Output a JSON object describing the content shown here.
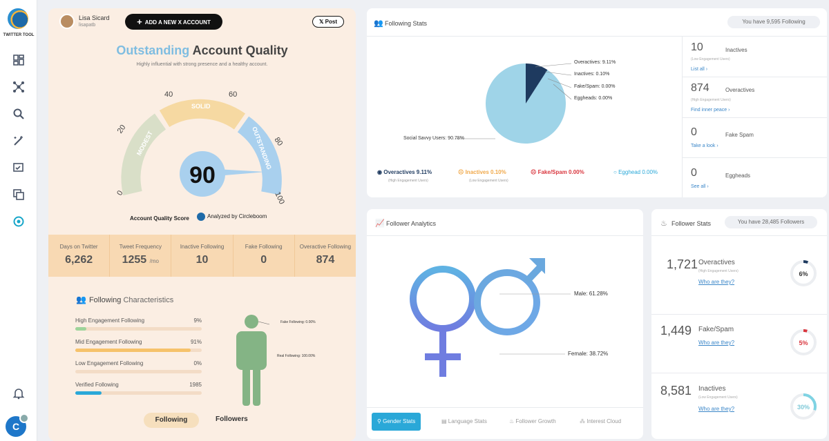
{
  "sidebar": {
    "app_name": "TWITTER TOOL",
    "items": [
      {
        "icon": "dashboard-icon"
      },
      {
        "icon": "network-icon"
      },
      {
        "icon": "search-icon"
      },
      {
        "icon": "magic-icon"
      },
      {
        "icon": "schedule-icon"
      },
      {
        "icon": "copy-icon"
      },
      {
        "icon": "sync-icon"
      }
    ],
    "avatar_letter": "C"
  },
  "profile": {
    "name": "Lisa Sicard",
    "handle": "lisapatb",
    "add_account_label": "ADD A NEW X ACCOUNT",
    "post_label": "Post"
  },
  "quality": {
    "title_highlight": "Outstanding",
    "title_rest": "Account Quality",
    "subtitle": "Highly influential with strong presence and a healthy account.",
    "score": 90,
    "gauge_ticks": [
      "0",
      "20",
      "40",
      "60",
      "80",
      "100"
    ],
    "zones": [
      "MODEST",
      "SOLID",
      "OUTSTANDING"
    ],
    "score_label": "Account Quality Score",
    "analyzed_by": "Analyzed by Circleboom"
  },
  "metrics": [
    {
      "label": "Days on Twitter",
      "value": "6,262",
      "unit": ""
    },
    {
      "label": "Tweet Frequency",
      "value": "1255",
      "unit": "/mo"
    },
    {
      "label": "Inactive Following",
      "value": "10",
      "unit": ""
    },
    {
      "label": "Fake Following",
      "value": "0",
      "unit": ""
    },
    {
      "label": "Overactive Following",
      "value": "874",
      "unit": ""
    }
  ],
  "characteristics": {
    "title_a": "Following",
    "title_b": "Characteristics",
    "bars": [
      {
        "label": "High Engagement Following",
        "value": "9%",
        "pct": 0.09,
        "color": "#9ed49a"
      },
      {
        "label": "Mid Engagement Following",
        "value": "91%",
        "pct": 0.91,
        "color": "#f6c26b"
      },
      {
        "label": "Low Engagement Following",
        "value": "0%",
        "pct": 0.0,
        "color": "#e57373"
      },
      {
        "label": "Verified Following",
        "value": "1985",
        "pct": 0.21,
        "color": "#2aa8d8"
      }
    ],
    "fake_label": "Fake Following: 0.00%",
    "real_label": "Real Following: 100.00%",
    "toggle_following": "Following",
    "toggle_followers": "Followers"
  },
  "following_stats": {
    "title": "Following Stats",
    "pill": "You have 9,595 Following",
    "pie_labels": {
      "overactives": "Overactives: 9.11%",
      "inactives": "Inactives: 0.10%",
      "fake": "Fake/Spam: 0.00%",
      "eggheads": "Eggheads: 0.00%",
      "social": "Social Savvy Users: 90.78%"
    },
    "legend": [
      {
        "label": "Overactives 9.11%",
        "sub": "(High Engagement Users)",
        "color": "#1e3a5f"
      },
      {
        "label": "Inactives 0.10%",
        "sub": "(Low Engagement Users)",
        "color": "#f0a94b"
      },
      {
        "label": "Fake/Spam 0.00%",
        "sub": "",
        "color": "#d9363e"
      },
      {
        "label": "Egghead 0.00%",
        "sub": "",
        "color": "#2aa8d8"
      }
    ],
    "side": [
      {
        "num": "10",
        "name": "Inactives",
        "sub": "(Low Engagement Users)",
        "link": "List all ›"
      },
      {
        "num": "874",
        "name": "Overactives",
        "sub": "(High Engagement Users)",
        "link": "Find inner peace ›"
      },
      {
        "num": "0",
        "name": "Fake Spam",
        "sub": "",
        "link": "Take a look ›"
      },
      {
        "num": "0",
        "name": "Eggheads",
        "sub": "",
        "link": "See all ›"
      }
    ]
  },
  "chart_data": {
    "type": "pie",
    "categories": [
      "Social Savvy Users",
      "Overactives",
      "Inactives",
      "Fake/Spam",
      "Eggheads"
    ],
    "values": [
      90.78,
      9.11,
      0.1,
      0.0,
      0.0
    ],
    "colors": [
      "#9fd4e8",
      "#1e3a5f",
      "#6aa9cf",
      "#d9363e",
      "#2aa8d8"
    ]
  },
  "follower_analytics": {
    "title": "Follower Analytics",
    "male": "Male: 61.28%",
    "female": "Female: 38.72%",
    "tabs": [
      "Gender Stats",
      "Language Stats",
      "Follower Growth",
      "Interest Cloud"
    ]
  },
  "follower_stats": {
    "title": "Follower Stats",
    "pill": "You have 28,485 Followers",
    "rows": [
      {
        "num": "1,721",
        "name": "Overactives",
        "sub": "(High Engagement Users)",
        "link": "Who are they?",
        "pct": "6%",
        "frac": 0.06,
        "color": "#1e3a5f"
      },
      {
        "num": "1,449",
        "name": "Fake/Spam",
        "sub": "",
        "link": "Who are they?",
        "pct": "5%",
        "frac": 0.05,
        "color": "#d9363e"
      },
      {
        "num": "8,581",
        "name": "Inactives",
        "sub": "(Low Engagement Users)",
        "link": "Who are they?",
        "pct": "30%",
        "frac": 0.3,
        "color": "#7fd3e3"
      }
    ]
  }
}
